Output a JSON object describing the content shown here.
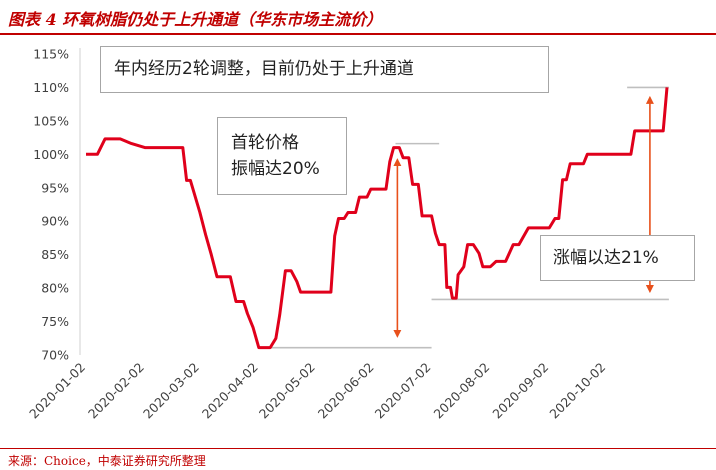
{
  "header": {
    "title": "图表 4 环氧树脂仍处于上升通道（华东市场主流价）"
  },
  "footer": {
    "source": "来源：Choice，中泰证券研究所整理"
  },
  "annotations": {
    "main": "年内经历2轮调整，目前仍处于上升通道",
    "first_round_line1": "首轮价格",
    "first_round_line2": "振幅达20%",
    "gain": "涨幅以达21%"
  },
  "colors": {
    "series": "#e0001b",
    "arrow": "#e8501b",
    "reference": "#bfbfbf",
    "accent": "#c00000"
  },
  "chart_data": {
    "type": "line",
    "title": "",
    "xlabel": "",
    "ylabel": "",
    "ylim": [
      70,
      115
    ],
    "y_ticks": [
      70,
      75,
      80,
      85,
      90,
      95,
      100,
      105,
      110,
      115
    ],
    "y_tick_labels": [
      "70%",
      "75%",
      "80%",
      "85%",
      "90%",
      "95%",
      "100%",
      "105%",
      "110%",
      "115%"
    ],
    "x_tick_labels": [
      "2020-01-02",
      "2020-02-02",
      "2020-03-02",
      "2020-04-02",
      "2020-05-02",
      "2020-06-02",
      "2020-07-02",
      "2020-08-02",
      "2020-09-02",
      "2020-10-02"
    ],
    "grid": false,
    "series": [
      {
        "name": "",
        "points": [
          [
            "2020-01-02",
            100.0
          ],
          [
            "2020-01-08",
            100.0
          ],
          [
            "2020-01-12",
            102.3
          ],
          [
            "2020-01-20",
            102.3
          ],
          [
            "2020-01-26",
            101.6
          ],
          [
            "2020-02-02",
            101.0
          ],
          [
            "2020-02-22",
            101.0
          ],
          [
            "2020-02-24",
            96.1
          ],
          [
            "2020-02-26",
            96.1
          ],
          [
            "2020-03-02",
            91.3
          ],
          [
            "2020-03-05",
            88.0
          ],
          [
            "2020-03-08",
            85.0
          ],
          [
            "2020-03-11",
            81.7
          ],
          [
            "2020-03-18",
            81.7
          ],
          [
            "2020-03-21",
            78.0
          ],
          [
            "2020-03-25",
            78.0
          ],
          [
            "2020-03-27",
            76.2
          ],
          [
            "2020-03-30",
            74.1
          ],
          [
            "2020-04-02",
            71.1
          ],
          [
            "2020-04-08",
            71.1
          ],
          [
            "2020-04-11",
            72.5
          ],
          [
            "2020-04-13",
            76.0
          ],
          [
            "2020-04-16",
            82.6
          ],
          [
            "2020-04-19",
            82.6
          ],
          [
            "2020-04-22",
            81.0
          ],
          [
            "2020-04-24",
            79.4
          ],
          [
            "2020-05-10",
            79.4
          ],
          [
            "2020-05-12",
            87.8
          ],
          [
            "2020-05-14",
            90.4
          ],
          [
            "2020-05-17",
            90.4
          ],
          [
            "2020-05-19",
            91.3
          ],
          [
            "2020-05-23",
            91.3
          ],
          [
            "2020-05-25",
            93.6
          ],
          [
            "2020-05-29",
            93.6
          ],
          [
            "2020-05-31",
            94.8
          ],
          [
            "2020-06-08",
            94.8
          ],
          [
            "2020-06-10",
            98.9
          ],
          [
            "2020-06-12",
            101.0
          ],
          [
            "2020-06-15",
            101.0
          ],
          [
            "2020-06-17",
            99.5
          ],
          [
            "2020-06-20",
            99.5
          ],
          [
            "2020-06-22",
            95.5
          ],
          [
            "2020-06-25",
            95.5
          ],
          [
            "2020-06-27",
            90.8
          ],
          [
            "2020-07-02",
            90.8
          ],
          [
            "2020-07-04",
            88.2
          ],
          [
            "2020-07-06",
            86.5
          ],
          [
            "2020-07-09",
            86.5
          ],
          [
            "2020-07-10",
            80.1
          ],
          [
            "2020-07-12",
            80.1
          ],
          [
            "2020-07-13",
            78.5
          ],
          [
            "2020-07-15",
            78.5
          ],
          [
            "2020-07-16",
            82.0
          ],
          [
            "2020-07-19",
            83.2
          ],
          [
            "2020-07-21",
            86.5
          ],
          [
            "2020-07-24",
            86.5
          ],
          [
            "2020-07-27",
            85.2
          ],
          [
            "2020-07-29",
            83.2
          ],
          [
            "2020-08-02",
            83.2
          ],
          [
            "2020-08-05",
            84.0
          ],
          [
            "2020-08-10",
            84.0
          ],
          [
            "2020-08-14",
            86.5
          ],
          [
            "2020-08-17",
            86.5
          ],
          [
            "2020-08-22",
            89.0
          ],
          [
            "2020-09-02",
            89.0
          ],
          [
            "2020-09-05",
            90.4
          ],
          [
            "2020-09-07",
            90.4
          ],
          [
            "2020-09-09",
            96.2
          ],
          [
            "2020-09-11",
            96.2
          ],
          [
            "2020-09-13",
            98.6
          ],
          [
            "2020-09-20",
            98.6
          ],
          [
            "2020-09-22",
            100.0
          ],
          [
            "2020-10-15",
            100.0
          ],
          [
            "2020-10-17",
            103.5
          ],
          [
            "2020-11-01",
            103.5
          ],
          [
            "2020-11-03",
            110.0
          ]
        ]
      }
    ]
  }
}
